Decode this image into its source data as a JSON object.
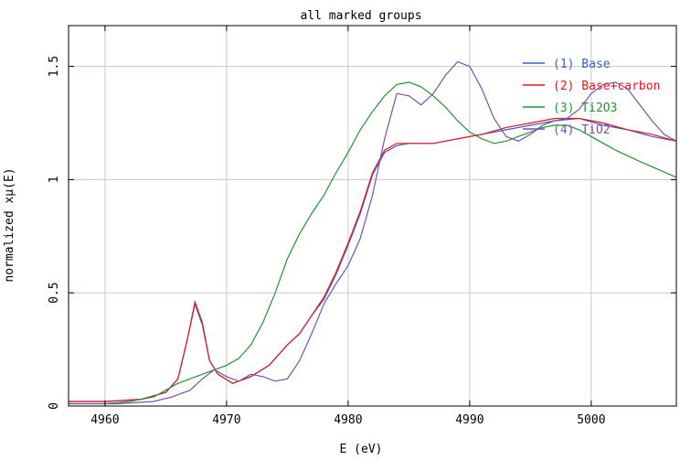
{
  "chart_data": {
    "type": "line",
    "title": "all marked groups",
    "xlabel": "E (eV)",
    "ylabel": "normalized xμ(E)",
    "xlim": [
      4957,
      5007
    ],
    "ylim": [
      0,
      1.68
    ],
    "xticks": [
      4960,
      4970,
      4980,
      4990,
      5000
    ],
    "xtick_labels": [
      "4960",
      "4970",
      "4980",
      "4990",
      "5000"
    ],
    "yticks": [
      0,
      0.5,
      1,
      1.5
    ],
    "ytick_labels": [
      "0",
      "0.5",
      "1",
      "1.5"
    ],
    "grid": true,
    "legend_position": "top-right",
    "series": [
      {
        "name": "(1) Base",
        "color": "#3a5fc9",
        "points": [
          [
            4957,
            0.02
          ],
          [
            4960,
            0.02
          ],
          [
            4963,
            0.03
          ],
          [
            4965,
            0.06
          ],
          [
            4966,
            0.12
          ],
          [
            4966.8,
            0.3
          ],
          [
            4967.4,
            0.45
          ],
          [
            4968,
            0.36
          ],
          [
            4968.6,
            0.2
          ],
          [
            4969.3,
            0.14
          ],
          [
            4970.5,
            0.1
          ],
          [
            4972,
            0.13
          ],
          [
            4973.5,
            0.18
          ],
          [
            4975,
            0.27
          ],
          [
            4976,
            0.32
          ],
          [
            4977,
            0.4
          ],
          [
            4978,
            0.47
          ],
          [
            4979,
            0.58
          ],
          [
            4980,
            0.71
          ],
          [
            4981,
            0.85
          ],
          [
            4982,
            1.02
          ],
          [
            4983,
            1.12
          ],
          [
            4984,
            1.15
          ],
          [
            4985,
            1.16
          ],
          [
            4987,
            1.16
          ],
          [
            4989,
            1.18
          ],
          [
            4991,
            1.2
          ],
          [
            4993,
            1.22
          ],
          [
            4995,
            1.24
          ],
          [
            4997,
            1.26
          ],
          [
            4999,
            1.27
          ],
          [
            5001,
            1.24
          ],
          [
            5003,
            1.22
          ],
          [
            5005,
            1.19
          ],
          [
            5007,
            1.17
          ]
        ]
      },
      {
        "name": "(2) Base+carbon",
        "color": "#e8161c",
        "points": [
          [
            4957,
            0.02
          ],
          [
            4960,
            0.02
          ],
          [
            4963,
            0.03
          ],
          [
            4965,
            0.06
          ],
          [
            4966,
            0.12
          ],
          [
            4966.8,
            0.3
          ],
          [
            4967.4,
            0.46
          ],
          [
            4968,
            0.37
          ],
          [
            4968.6,
            0.2
          ],
          [
            4969.3,
            0.14
          ],
          [
            4970.5,
            0.1
          ],
          [
            4972,
            0.13
          ],
          [
            4973.5,
            0.18
          ],
          [
            4975,
            0.27
          ],
          [
            4976,
            0.32
          ],
          [
            4977,
            0.4
          ],
          [
            4978,
            0.48
          ],
          [
            4979,
            0.59
          ],
          [
            4980,
            0.72
          ],
          [
            4981,
            0.86
          ],
          [
            4982,
            1.03
          ],
          [
            4983,
            1.13
          ],
          [
            4984,
            1.16
          ],
          [
            4985,
            1.16
          ],
          [
            4987,
            1.16
          ],
          [
            4989,
            1.18
          ],
          [
            4991,
            1.2
          ],
          [
            4993,
            1.23
          ],
          [
            4995,
            1.25
          ],
          [
            4997,
            1.27
          ],
          [
            4999,
            1.27
          ],
          [
            5001,
            1.25
          ],
          [
            5003,
            1.22
          ],
          [
            5005,
            1.2
          ],
          [
            5007,
            1.17
          ]
        ]
      },
      {
        "name": "(3) Ti2O3",
        "color": "#249232",
        "points": [
          [
            4957,
            0.01
          ],
          [
            4960,
            0.01
          ],
          [
            4962,
            0.02
          ],
          [
            4964,
            0.04
          ],
          [
            4966,
            0.1
          ],
          [
            4968,
            0.14
          ],
          [
            4970,
            0.18
          ],
          [
            4971,
            0.21
          ],
          [
            4972,
            0.27
          ],
          [
            4973,
            0.37
          ],
          [
            4974,
            0.5
          ],
          [
            4975,
            0.65
          ],
          [
            4976,
            0.76
          ],
          [
            4977,
            0.85
          ],
          [
            4978,
            0.93
          ],
          [
            4979,
            1.03
          ],
          [
            4980,
            1.12
          ],
          [
            4981,
            1.22
          ],
          [
            4982,
            1.3
          ],
          [
            4983,
            1.37
          ],
          [
            4984,
            1.42
          ],
          [
            4985,
            1.43
          ],
          [
            4986,
            1.41
          ],
          [
            4987,
            1.37
          ],
          [
            4988,
            1.32
          ],
          [
            4989,
            1.26
          ],
          [
            4990,
            1.21
          ],
          [
            4991,
            1.18
          ],
          [
            4992,
            1.16
          ],
          [
            4993,
            1.17
          ],
          [
            4994,
            1.19
          ],
          [
            4995,
            1.21
          ],
          [
            4996,
            1.23
          ],
          [
            4997,
            1.24
          ],
          [
            4998,
            1.24
          ],
          [
            4999,
            1.22
          ],
          [
            5000,
            1.19
          ],
          [
            5002,
            1.13
          ],
          [
            5004,
            1.08
          ],
          [
            5007,
            1.01
          ]
        ]
      },
      {
        "name": "(4) TiO2",
        "color": "#7a4fb0",
        "points": [
          [
            4957,
            0.01
          ],
          [
            4961,
            0.01
          ],
          [
            4964,
            0.02
          ],
          [
            4965.5,
            0.04
          ],
          [
            4967,
            0.07
          ],
          [
            4968,
            0.12
          ],
          [
            4969,
            0.16
          ],
          [
            4970,
            0.13
          ],
          [
            4971,
            0.11
          ],
          [
            4972,
            0.14
          ],
          [
            4973,
            0.13
          ],
          [
            4974,
            0.11
          ],
          [
            4975,
            0.12
          ],
          [
            4976,
            0.2
          ],
          [
            4977,
            0.32
          ],
          [
            4978,
            0.45
          ],
          [
            4979,
            0.54
          ],
          [
            4980,
            0.62
          ],
          [
            4981,
            0.74
          ],
          [
            4982,
            0.93
          ],
          [
            4983,
            1.18
          ],
          [
            4984,
            1.38
          ],
          [
            4985,
            1.37
          ],
          [
            4986,
            1.33
          ],
          [
            4987,
            1.38
          ],
          [
            4988,
            1.46
          ],
          [
            4989,
            1.52
          ],
          [
            4990,
            1.5
          ],
          [
            4991,
            1.4
          ],
          [
            4992,
            1.27
          ],
          [
            4993,
            1.19
          ],
          [
            4994,
            1.17
          ],
          [
            4995,
            1.2
          ],
          [
            4996,
            1.24
          ],
          [
            4997,
            1.26
          ],
          [
            4998,
            1.27
          ],
          [
            4999,
            1.31
          ],
          [
            5000,
            1.38
          ],
          [
            5001,
            1.42
          ],
          [
            5002,
            1.43
          ],
          [
            5003,
            1.4
          ],
          [
            5004,
            1.33
          ],
          [
            5005,
            1.26
          ],
          [
            5006,
            1.2
          ],
          [
            5007,
            1.17
          ]
        ]
      }
    ]
  }
}
